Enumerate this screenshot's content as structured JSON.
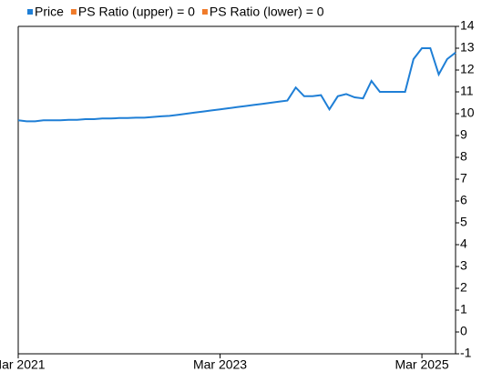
{
  "chart_data": {
    "type": "line",
    "x": [
      "2021-03",
      "2021-04",
      "2021-05",
      "2021-06",
      "2021-07",
      "2021-08",
      "2021-09",
      "2021-10",
      "2021-11",
      "2021-12",
      "2022-01",
      "2022-02",
      "2022-03",
      "2022-04",
      "2022-05",
      "2022-06",
      "2022-07",
      "2022-08",
      "2022-09",
      "2022-10",
      "2022-11",
      "2022-12",
      "2023-01",
      "2023-02",
      "2023-03",
      "2023-04",
      "2023-05",
      "2023-06",
      "2023-07",
      "2023-08",
      "2023-09",
      "2023-10",
      "2023-11",
      "2023-12",
      "2024-01",
      "2024-02",
      "2024-03",
      "2024-04",
      "2024-05",
      "2024-06",
      "2024-07",
      "2024-08",
      "2024-09",
      "2024-10",
      "2024-11",
      "2024-12",
      "2025-01",
      "2025-02",
      "2025-03",
      "2025-04",
      "2025-05",
      "2025-06",
      "2025-07"
    ],
    "series": [
      {
        "name": "Price",
        "color": "#1f7fd6",
        "values": [
          9.7,
          9.65,
          9.65,
          9.7,
          9.7,
          9.7,
          9.72,
          9.72,
          9.75,
          9.75,
          9.78,
          9.78,
          9.8,
          9.8,
          9.82,
          9.82,
          9.85,
          9.88,
          9.9,
          9.95,
          10.0,
          10.05,
          10.1,
          10.15,
          10.2,
          10.25,
          10.3,
          10.35,
          10.4,
          10.45,
          10.5,
          10.55,
          10.6,
          11.2,
          10.8,
          10.8,
          10.85,
          10.2,
          10.8,
          10.9,
          10.75,
          10.7,
          11.5,
          11.0,
          11.0,
          11.0,
          11.0,
          12.5,
          13.0,
          13.0,
          11.8,
          12.5,
          12.8
        ]
      },
      {
        "name": "PS Ratio (upper) = 0",
        "color": "#f07b2a"
      },
      {
        "name": "PS Ratio (lower) = 0",
        "color": "#f07b2a"
      }
    ],
    "xlim": [
      "2021-03",
      "2025-07"
    ],
    "xticks": [
      {
        "value": "2021-03",
        "label": "Mar 2021"
      },
      {
        "value": "2023-03",
        "label": "Mar 2023"
      },
      {
        "value": "2025-03",
        "label": "Mar 2025"
      }
    ],
    "ylim": [
      -1,
      14
    ],
    "yticks": [
      -1,
      0,
      1,
      2,
      3,
      4,
      5,
      6,
      7,
      8,
      9,
      10,
      11,
      12,
      13,
      14
    ],
    "y_axis_side": "right",
    "grid": false
  }
}
